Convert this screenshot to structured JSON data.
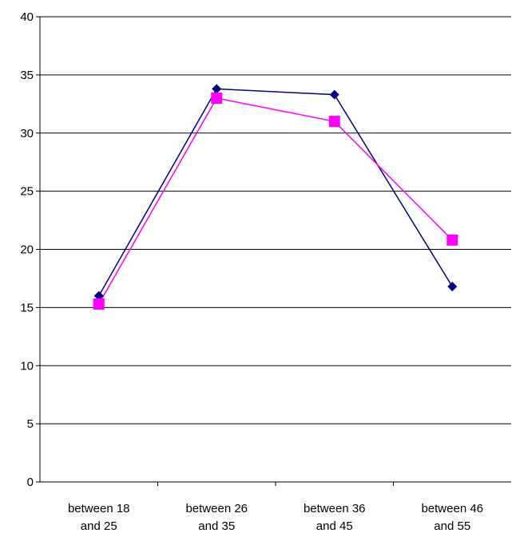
{
  "chart_data": {
    "type": "line",
    "categories": [
      [
        "between 18",
        "and 25"
      ],
      [
        "between 26",
        "and 35"
      ],
      [
        "between 36",
        "and 45"
      ],
      [
        "between 46",
        "and 55"
      ]
    ],
    "series": [
      {
        "values": [
          16.0,
          33.8,
          33.3,
          16.8
        ],
        "color": "#000080",
        "marker": "diamond"
      },
      {
        "values": [
          15.3,
          33.0,
          31.0,
          20.8
        ],
        "color": "#FF00FF",
        "marker": "square"
      }
    ],
    "ylim": [
      0,
      40
    ],
    "yticks": [
      0,
      5,
      10,
      15,
      20,
      25,
      30,
      35,
      40
    ],
    "grid": true,
    "legend": "none"
  }
}
